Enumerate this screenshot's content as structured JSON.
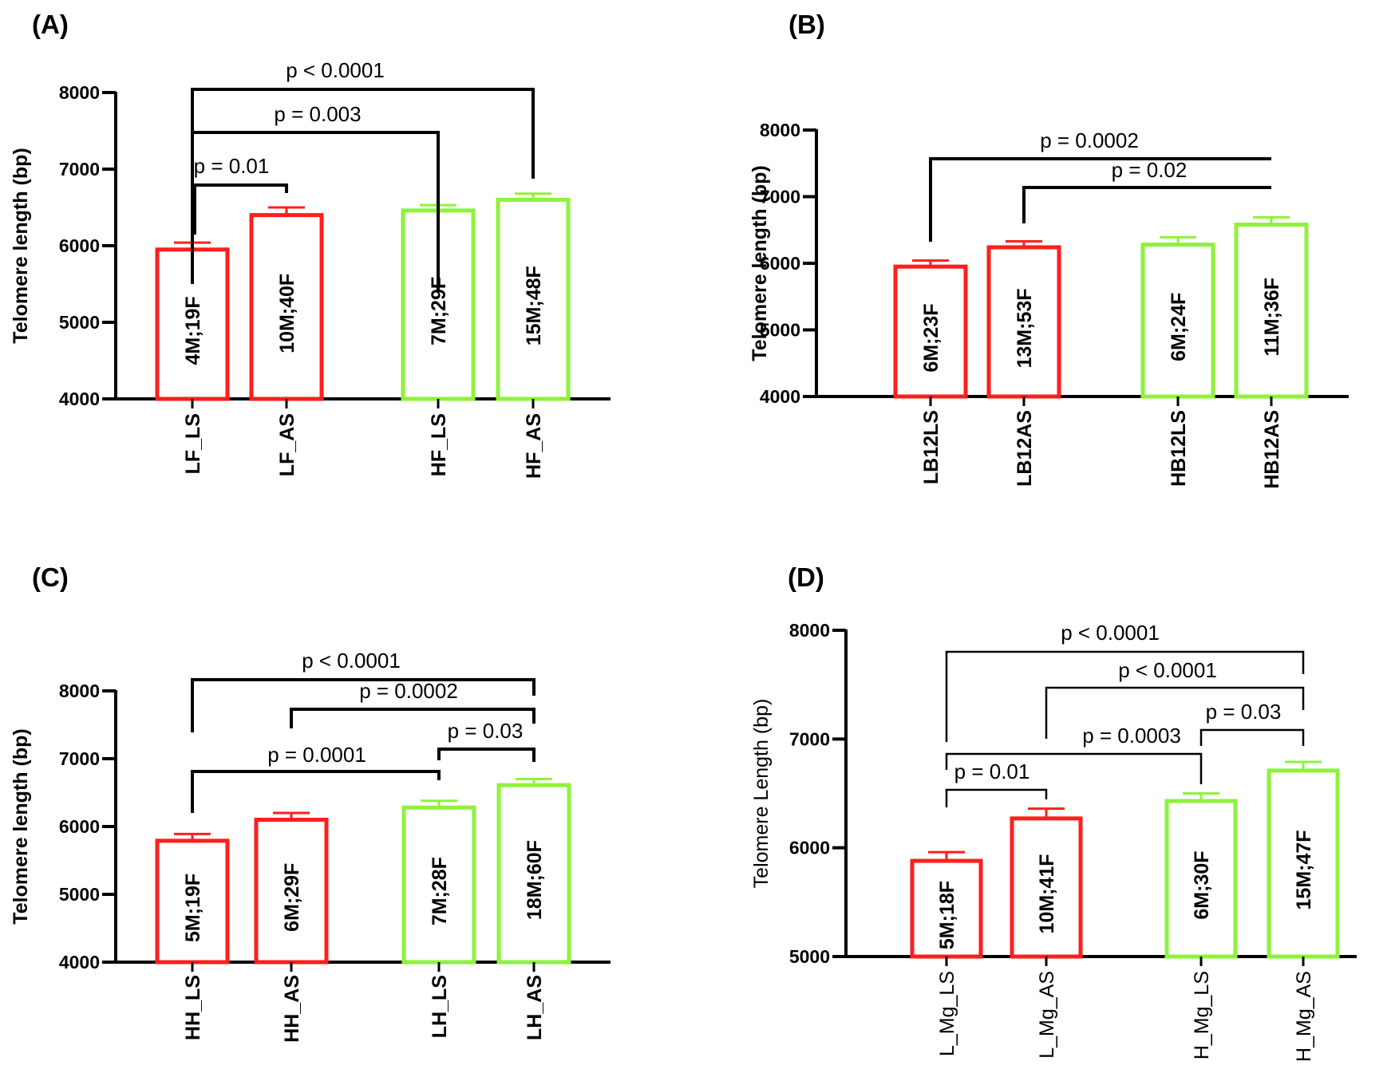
{
  "chart_data": [
    {
      "type": "bar",
      "panel_label": "(A)",
      "ylabel": "Telomere length (bp)",
      "ylabel_bold": true,
      "ylim": [
        4000,
        8000
      ],
      "yticks": [
        4000,
        5000,
        6000,
        7000,
        8000
      ],
      "categories": [
        "LF_LS",
        "LF_AS",
        "HF_LS",
        "HF_AS"
      ],
      "category_bold": true,
      "values": [
        5950,
        6400,
        6460,
        6600
      ],
      "errors": [
        90,
        100,
        70,
        80
      ],
      "bar_labels": [
        "4M;19F",
        "10M;40F",
        "7M;29F",
        "15M;48F"
      ],
      "colors": [
        "#ff1e1e",
        "#ff1e1e",
        "#8ef23a",
        "#8ef23a"
      ],
      "comparisons": [
        {
          "from": 0,
          "to": 3,
          "label": "p < 0.0001"
        },
        {
          "from": 0,
          "to": 2,
          "label": "p = 0.003"
        },
        {
          "from": 0,
          "to": 1,
          "label": "p = 0.01"
        }
      ]
    },
    {
      "type": "bar",
      "panel_label": "(B)",
      "ylabel": "Telomere length (bp)",
      "ylabel_bold": true,
      "ylim": [
        4000,
        8000
      ],
      "yticks": [
        4000,
        5000,
        6000,
        7000,
        8000
      ],
      "categories": [
        "LB12LS",
        "LB12AS",
        "HB12LS",
        "HB12AS"
      ],
      "category_bold": true,
      "values": [
        5950,
        6240,
        6280,
        6580
      ],
      "errors": [
        90,
        90,
        110,
        110
      ],
      "bar_labels": [
        "6M;23F",
        "13M;53F",
        "6M;24F",
        "11M;36F"
      ],
      "colors": [
        "#ff1e1e",
        "#ff1e1e",
        "#8ef23a",
        "#8ef23a"
      ],
      "comparisons": [
        {
          "from": 0,
          "to": 3,
          "label": "p = 0.0002"
        },
        {
          "from": 1,
          "to": 3,
          "label": "p = 0.02"
        }
      ]
    },
    {
      "type": "bar",
      "panel_label": "(C)",
      "ylabel": "Telomere length (bp)",
      "ylabel_bold": true,
      "ylim": [
        4000,
        8000
      ],
      "yticks": [
        4000,
        5000,
        6000,
        7000,
        8000
      ],
      "categories": [
        "HH_LS",
        "HH_AS",
        "LH_LS",
        "LH_AS"
      ],
      "category_bold": true,
      "values": [
        5790,
        6100,
        6280,
        6610
      ],
      "errors": [
        100,
        100,
        100,
        90
      ],
      "bar_labels": [
        "5M;19F",
        "6M;29F",
        "7M;28F",
        "18M;60F"
      ],
      "colors": [
        "#ff1e1e",
        "#ff1e1e",
        "#8ef23a",
        "#8ef23a"
      ],
      "comparisons": [
        {
          "from": 0,
          "to": 3,
          "label": "p < 0.0001"
        },
        {
          "from": 1,
          "to": 3,
          "label": "p = 0.0002"
        },
        {
          "from": 2,
          "to": 3,
          "label": "p = 0.03"
        },
        {
          "from": 0,
          "to": 2,
          "label": "p = 0.0001"
        }
      ]
    },
    {
      "type": "bar",
      "panel_label": "(D)",
      "ylabel": "Telomere Length (bp)",
      "ylabel_bold": false,
      "ylim": [
        5000,
        8000
      ],
      "yticks": [
        5000,
        6000,
        7000,
        8000
      ],
      "categories": [
        "L_Mg_LS",
        "L_Mg_AS",
        "H_Mg_LS",
        "H_Mg_AS"
      ],
      "category_bold": false,
      "values": [
        5880,
        6270,
        6430,
        6710
      ],
      "errors": [
        80,
        90,
        70,
        80
      ],
      "bar_labels": [
        "5M;18F",
        "10M;41F",
        "6M;30F",
        "15M;47F"
      ],
      "colors": [
        "#ff1e1e",
        "#ff1e1e",
        "#8ef23a",
        "#8ef23a"
      ],
      "comparisons": [
        {
          "from": 0,
          "to": 3,
          "label": "p < 0.0001"
        },
        {
          "from": 1,
          "to": 3,
          "label": "p < 0.0001"
        },
        {
          "from": 2,
          "to": 3,
          "label": "p = 0.03"
        },
        {
          "from": 0,
          "to": 2,
          "label": "p = 0.0003"
        },
        {
          "from": 0,
          "to": 1,
          "label": "p = 0.01"
        }
      ]
    }
  ]
}
